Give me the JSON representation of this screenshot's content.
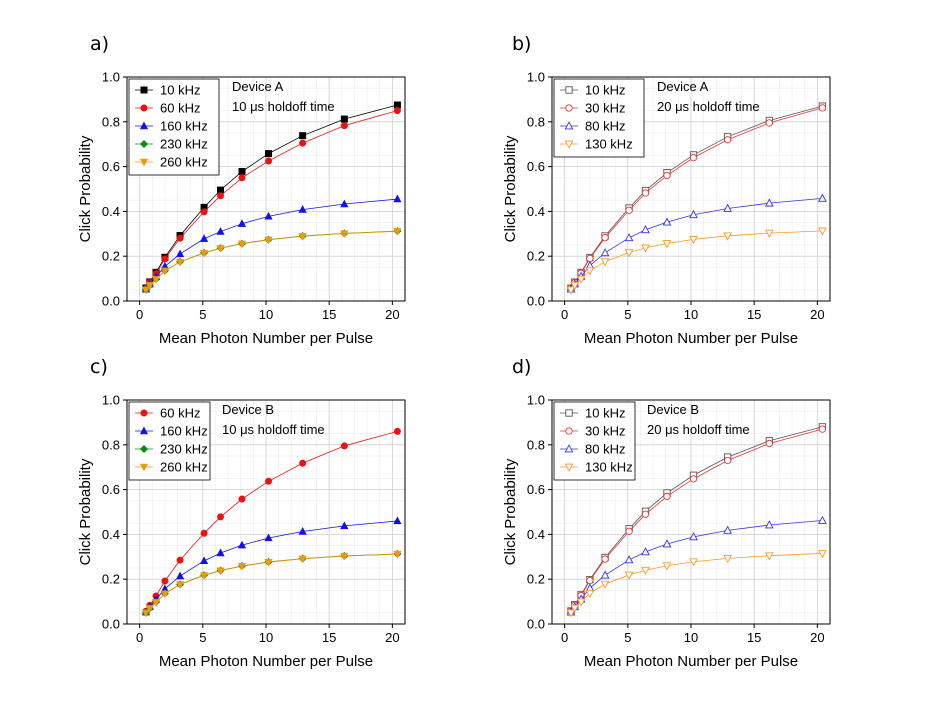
{
  "chart_data": [
    {
      "type": "line",
      "panel_label": "a)",
      "xlabel": "Mean Photon Number per Pulse",
      "ylabel": "Click Probability",
      "xlim": [
        -1,
        21
      ],
      "ylim": [
        0,
        1.0
      ],
      "xticks": [
        0,
        5,
        10,
        15,
        20
      ],
      "yticks": [
        0.0,
        0.2,
        0.4,
        0.6,
        0.8,
        1.0
      ],
      "ytick_labels": [
        "0.0",
        "0.2",
        "0.4",
        "0.6",
        "0.8",
        "1.0"
      ],
      "grid": true,
      "legend_position": "top-left",
      "annotation": [
        "Device A",
        "10 μs holdoff time"
      ],
      "x": [
        0.5,
        0.8,
        1.3,
        2.0,
        3.2,
        5.1,
        6.4,
        8.1,
        10.2,
        12.9,
        16.2,
        20.4
      ],
      "series": [
        {
          "name": "10 kHz",
          "color": "#000000",
          "marker": "square",
          "filled": true,
          "values": [
            0.058,
            0.085,
            0.128,
            0.195,
            0.292,
            0.418,
            0.495,
            0.578,
            0.658,
            0.738,
            0.812,
            0.875
          ]
        },
        {
          "name": "60 kHz",
          "color": "#ee1111",
          "marker": "circle",
          "filled": true,
          "values": [
            0.055,
            0.082,
            0.122,
            0.188,
            0.28,
            0.398,
            0.47,
            0.55,
            0.625,
            0.705,
            0.783,
            0.85
          ]
        },
        {
          "name": "160 kHz",
          "color": "#1111ee",
          "marker": "triangle-up",
          "filled": true,
          "values": [
            0.052,
            0.075,
            0.108,
            0.155,
            0.21,
            0.278,
            0.31,
            0.345,
            0.378,
            0.408,
            0.433,
            0.455
          ]
        },
        {
          "name": "230 kHz",
          "color": "#118811",
          "marker": "diamond",
          "filled": true,
          "values": [
            0.05,
            0.07,
            0.098,
            0.135,
            0.175,
            0.215,
            0.236,
            0.256,
            0.274,
            0.29,
            0.302,
            0.312
          ]
        },
        {
          "name": "260 kHz",
          "color": "#ee9911",
          "marker": "triangle-down",
          "filled": true,
          "values": [
            0.05,
            0.07,
            0.097,
            0.134,
            0.174,
            0.214,
            0.235,
            0.255,
            0.273,
            0.289,
            0.301,
            0.311
          ]
        }
      ]
    },
    {
      "type": "line",
      "panel_label": "b)",
      "xlabel": "Mean Photon Number per Pulse",
      "ylabel": "Click Probability",
      "xlim": [
        -1,
        21
      ],
      "ylim": [
        0,
        1.0
      ],
      "xticks": [
        0,
        5,
        10,
        15,
        20
      ],
      "yticks": [
        0.0,
        0.2,
        0.4,
        0.6,
        0.8,
        1.0
      ],
      "ytick_labels": [
        "0.0",
        "0.2",
        "0.4",
        "0.6",
        "0.8",
        "1.0"
      ],
      "grid": true,
      "legend_position": "top-left",
      "annotation": [
        "Device A",
        "20 μs holdoff time"
      ],
      "x": [
        0.5,
        0.8,
        1.3,
        2.0,
        3.2,
        5.1,
        6.4,
        8.1,
        10.2,
        12.9,
        16.2,
        20.4
      ],
      "series": [
        {
          "name": "10 kHz",
          "color": "#555555",
          "marker": "square",
          "filled": false,
          "values": [
            0.057,
            0.084,
            0.127,
            0.194,
            0.29,
            0.415,
            0.493,
            0.573,
            0.652,
            0.733,
            0.806,
            0.87
          ]
        },
        {
          "name": "30 kHz",
          "color": "#ee3333",
          "marker": "circle",
          "filled": false,
          "values": [
            0.056,
            0.082,
            0.124,
            0.19,
            0.283,
            0.405,
            0.482,
            0.56,
            0.64,
            0.72,
            0.795,
            0.862
          ]
        },
        {
          "name": "80 kHz",
          "color": "#3333ee",
          "marker": "triangle-up",
          "filled": false,
          "values": [
            0.053,
            0.076,
            0.11,
            0.158,
            0.215,
            0.282,
            0.318,
            0.352,
            0.385,
            0.413,
            0.437,
            0.458
          ]
        },
        {
          "name": "130 kHz",
          "color": "#ff9922",
          "marker": "triangle-down",
          "filled": false,
          "values": [
            0.05,
            0.07,
            0.098,
            0.135,
            0.176,
            0.216,
            0.237,
            0.257,
            0.275,
            0.291,
            0.303,
            0.313
          ]
        }
      ]
    },
    {
      "type": "line",
      "panel_label": "c)",
      "xlabel": "Mean Photon Number per Pulse",
      "ylabel": "Click Probability",
      "xlim": [
        -1,
        21
      ],
      "ylim": [
        0,
        1.0
      ],
      "xticks": [
        0,
        5,
        10,
        15,
        20
      ],
      "yticks": [
        0.0,
        0.2,
        0.4,
        0.6,
        0.8,
        1.0
      ],
      "ytick_labels": [
        "0.0",
        "0.2",
        "0.4",
        "0.6",
        "0.8",
        "1.0"
      ],
      "grid": true,
      "legend_position": "top-left",
      "annotation": [
        "Device B",
        "10 μs holdoff time"
      ],
      "x": [
        0.5,
        0.8,
        1.3,
        2.0,
        3.2,
        5.1,
        6.4,
        8.1,
        10.2,
        12.9,
        16.2,
        20.4
      ],
      "series": [
        {
          "name": "60 kHz",
          "color": "#ee1111",
          "marker": "circle",
          "filled": true,
          "values": [
            0.057,
            0.083,
            0.125,
            0.192,
            0.285,
            0.405,
            0.478,
            0.558,
            0.637,
            0.718,
            0.795,
            0.86
          ]
        },
        {
          "name": "160 kHz",
          "color": "#1111ee",
          "marker": "triangle-up",
          "filled": true,
          "values": [
            0.053,
            0.076,
            0.11,
            0.157,
            0.214,
            0.282,
            0.317,
            0.352,
            0.384,
            0.413,
            0.438,
            0.46
          ]
        },
        {
          "name": "230 kHz",
          "color": "#118811",
          "marker": "diamond",
          "filled": true,
          "values": [
            0.05,
            0.07,
            0.098,
            0.136,
            0.177,
            0.218,
            0.239,
            0.259,
            0.277,
            0.292,
            0.304,
            0.313
          ]
        },
        {
          "name": "260 kHz",
          "color": "#ee9911",
          "marker": "triangle-down",
          "filled": true,
          "values": [
            0.05,
            0.07,
            0.097,
            0.135,
            0.176,
            0.217,
            0.238,
            0.258,
            0.276,
            0.291,
            0.303,
            0.312
          ]
        }
      ]
    },
    {
      "type": "line",
      "panel_label": "d)",
      "xlabel": "Mean Photon Number per Pulse",
      "ylabel": "Click Probability",
      "xlim": [
        -1,
        21
      ],
      "ylim": [
        0,
        1.0
      ],
      "xticks": [
        0,
        5,
        10,
        15,
        20
      ],
      "yticks": [
        0.0,
        0.2,
        0.4,
        0.6,
        0.8,
        1.0
      ],
      "ytick_labels": [
        "0.0",
        "0.2",
        "0.4",
        "0.6",
        "0.8",
        "1.0"
      ],
      "grid": true,
      "legend_position": "top-left",
      "annotation": [
        "Device B",
        "20 μs holdoff time"
      ],
      "x": [
        0.5,
        0.8,
        1.3,
        2.0,
        3.2,
        5.1,
        6.4,
        8.1,
        10.2,
        12.9,
        16.2,
        20.4
      ],
      "series": [
        {
          "name": "10 kHz",
          "color": "#555555",
          "marker": "square",
          "filled": false,
          "values": [
            0.058,
            0.086,
            0.13,
            0.198,
            0.297,
            0.425,
            0.503,
            0.585,
            0.664,
            0.745,
            0.818,
            0.88
          ]
        },
        {
          "name": "30 kHz",
          "color": "#ee3333",
          "marker": "circle",
          "filled": false,
          "values": [
            0.057,
            0.084,
            0.127,
            0.194,
            0.29,
            0.414,
            0.49,
            0.57,
            0.648,
            0.73,
            0.806,
            0.87
          ]
        },
        {
          "name": "80 kHz",
          "color": "#3333ee",
          "marker": "triangle-up",
          "filled": false,
          "values": [
            0.053,
            0.077,
            0.111,
            0.16,
            0.218,
            0.286,
            0.322,
            0.357,
            0.389,
            0.418,
            0.442,
            0.462
          ]
        },
        {
          "name": "130 kHz",
          "color": "#ff9922",
          "marker": "triangle-down",
          "filled": false,
          "values": [
            0.05,
            0.071,
            0.099,
            0.137,
            0.178,
            0.219,
            0.24,
            0.26,
            0.278,
            0.293,
            0.305,
            0.315
          ]
        }
      ]
    }
  ]
}
